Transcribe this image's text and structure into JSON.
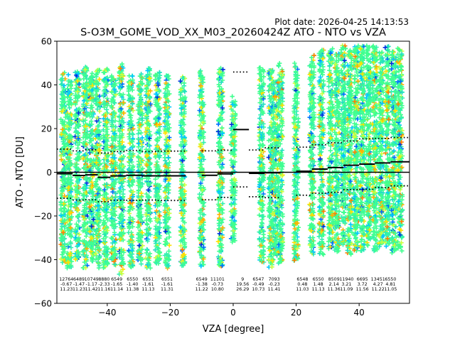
{
  "header": {
    "plot_date": "Plot date: 2026-04-25 14:13:53",
    "title": "S-O3M_GOME_VOD_XX_M03_20260424Z ATO - NTO vs VZA"
  },
  "chart_data": {
    "type": "scatter",
    "title": "S-O3M_GOME_VOD_XX_M03_20260424Z ATO - NTO vs VZA",
    "xlabel": "VZA [degree]",
    "ylabel": "ATO - NTO [DU]",
    "xlim": [
      -56,
      56
    ],
    "ylim": [
      -60,
      60
    ],
    "x_ticks": [
      -40,
      -20,
      0,
      20,
      40
    ],
    "y_ticks": [
      -60,
      -40,
      -20,
      0,
      20,
      40,
      60
    ],
    "zero_line": 0,
    "marker": "+",
    "point_colors": [
      "#40ff90",
      "#30f0b0",
      "#20e0c0",
      "#00c8ff",
      "#0070ff",
      "#0030e0",
      "#c8ff40",
      "#ffe000",
      "#ffb000",
      "#ff7f00"
    ],
    "bins": [
      {
        "vza": -53,
        "count": "12764",
        "mean": "-0.67",
        "std": "11.23"
      },
      {
        "vza": -49,
        "count": "6489",
        "mean": "-1.47",
        "std": "11.23"
      },
      {
        "vza": -45,
        "count": "10749",
        "mean": "-1.17",
        "std": "11.42"
      },
      {
        "vza": -41,
        "count": "8880",
        "mean": "-2.33",
        "std": "11.16"
      },
      {
        "vza": -37,
        "count": "6549",
        "mean": "-1.65",
        "std": "11.14"
      },
      {
        "vza": -32,
        "count": "6550",
        "mean": "-1.40",
        "std": "11.38"
      },
      {
        "vza": -27,
        "count": "6551",
        "mean": "-1.61",
        "std": "11.13"
      },
      {
        "vza": -21,
        "count": "6551",
        "mean": "-1.61",
        "std": "11.31"
      },
      {
        "vza": -10,
        "count": "6549",
        "mean": "-1.38",
        "std": "11.22"
      },
      {
        "vza": -5,
        "count": "11101",
        "mean": "-0.73",
        "std": "10.80"
      },
      {
        "vza": 3,
        "count": "9",
        "mean": "19.56",
        "std": "26.29"
      },
      {
        "vza": 8,
        "count": "6547",
        "mean": "-0.49",
        "std": "10.73"
      },
      {
        "vza": 13,
        "count": "7093",
        "mean": "-0.23",
        "std": "11.41"
      },
      {
        "vza": 22,
        "count": "6548",
        "mean": "0.48",
        "std": "11.03"
      },
      {
        "vza": 27,
        "count": "6550",
        "mean": "1.48",
        "std": "11.13"
      },
      {
        "vza": 32,
        "count": "8509",
        "mean": "2.14",
        "std": "11.36"
      },
      {
        "vza": 36,
        "count": "11940",
        "mean": "3.21",
        "std": "11.09"
      },
      {
        "vza": 41,
        "count": "6695",
        "mean": "3.72",
        "std": "11.56"
      },
      {
        "vza": 46,
        "count": "13451",
        "mean": "4.27",
        "std": "11.22"
      },
      {
        "vza": 50,
        "count": "6550",
        "mean": "4.81",
        "std": "11.05"
      }
    ],
    "mean_segments": [
      {
        "x0": -56,
        "x1": -51,
        "y": -0.67
      },
      {
        "x0": -51,
        "x1": -47,
        "y": -1.47
      },
      {
        "x0": -47,
        "x1": -43,
        "y": -1.17
      },
      {
        "x0": -43,
        "x1": -39,
        "y": -2.33
      },
      {
        "x0": -39,
        "x1": -34,
        "y": -1.65
      },
      {
        "x0": -34,
        "x1": -29,
        "y": -1.4
      },
      {
        "x0": -29,
        "x1": -24,
        "y": -1.61
      },
      {
        "x0": -24,
        "x1": -15,
        "y": -1.61
      },
      {
        "x0": -10,
        "x1": -5,
        "y": -1.38
      },
      {
        "x0": -5,
        "x1": 0,
        "y": -0.73
      },
      {
        "x0": 0,
        "x1": 5,
        "y": 19.56
      },
      {
        "x0": 5,
        "x1": 10,
        "y": -0.49
      },
      {
        "x0": 10,
        "x1": 15,
        "y": -0.23
      },
      {
        "x0": 20,
        "x1": 25,
        "y": 0.48
      },
      {
        "x0": 25,
        "x1": 30,
        "y": 1.48
      },
      {
        "x0": 30,
        "x1": 35,
        "y": 2.14
      },
      {
        "x0": 35,
        "x1": 40,
        "y": 3.21
      },
      {
        "x0": 40,
        "x1": 45,
        "y": 3.72
      },
      {
        "x0": 45,
        "x1": 50,
        "y": 4.27
      },
      {
        "x0": 50,
        "x1": 56,
        "y": 4.81
      }
    ],
    "upper_std_line": [
      {
        "x0": -56,
        "x1": -51,
        "y": 10.6
      },
      {
        "x0": -51,
        "x1": -47,
        "y": 9.8
      },
      {
        "x0": -47,
        "x1": -43,
        "y": 10.3
      },
      {
        "x0": -43,
        "x1": -39,
        "y": 8.8
      },
      {
        "x0": -39,
        "x1": -34,
        "y": 9.5
      },
      {
        "x0": -34,
        "x1": -29,
        "y": 10.0
      },
      {
        "x0": -29,
        "x1": -24,
        "y": 9.5
      },
      {
        "x0": -24,
        "x1": -15,
        "y": 9.7
      },
      {
        "x0": -10,
        "x1": -5,
        "y": 9.8
      },
      {
        "x0": -5,
        "x1": 0,
        "y": 10.1
      },
      {
        "x0": 0,
        "x1": 5,
        "y": 45.9
      },
      {
        "x0": 5,
        "x1": 10,
        "y": 10.2
      },
      {
        "x0": 10,
        "x1": 15,
        "y": 11.2
      },
      {
        "x0": 20,
        "x1": 25,
        "y": 11.5
      },
      {
        "x0": 25,
        "x1": 30,
        "y": 12.6
      },
      {
        "x0": 30,
        "x1": 35,
        "y": 13.5
      },
      {
        "x0": 35,
        "x1": 40,
        "y": 14.3
      },
      {
        "x0": 40,
        "x1": 45,
        "y": 15.3
      },
      {
        "x0": 45,
        "x1": 50,
        "y": 15.5
      },
      {
        "x0": 50,
        "x1": 56,
        "y": 15.9
      }
    ],
    "lower_std_line": [
      {
        "x0": -56,
        "x1": -51,
        "y": -11.9
      },
      {
        "x0": -51,
        "x1": -47,
        "y": -12.7
      },
      {
        "x0": -47,
        "x1": -43,
        "y": -12.6
      },
      {
        "x0": -43,
        "x1": -39,
        "y": -13.5
      },
      {
        "x0": -39,
        "x1": -34,
        "y": -12.8
      },
      {
        "x0": -34,
        "x1": -29,
        "y": -12.8
      },
      {
        "x0": -29,
        "x1": -24,
        "y": -12.7
      },
      {
        "x0": -24,
        "x1": -15,
        "y": -12.9
      },
      {
        "x0": -10,
        "x1": -5,
        "y": -12.6
      },
      {
        "x0": -5,
        "x1": 0,
        "y": -11.5
      },
      {
        "x0": 0,
        "x1": 5,
        "y": -6.7
      },
      {
        "x0": 5,
        "x1": 10,
        "y": -11.2
      },
      {
        "x0": 10,
        "x1": 15,
        "y": -11.6
      },
      {
        "x0": 20,
        "x1": 25,
        "y": -10.5
      },
      {
        "x0": 25,
        "x1": 30,
        "y": -9.6
      },
      {
        "x0": 30,
        "x1": 35,
        "y": -9.2
      },
      {
        "x0": 35,
        "x1": 40,
        "y": -7.9
      },
      {
        "x0": 40,
        "x1": 45,
        "y": -7.8
      },
      {
        "x0": 45,
        "x1": 50,
        "y": -7.0
      },
      {
        "x0": 50,
        "x1": 56,
        "y": -6.2
      }
    ],
    "scatter_columns": [
      {
        "vza": -54,
        "ymin": -42,
        "ymax": 46
      },
      {
        "vza": -52,
        "ymin": -44,
        "ymax": 45
      },
      {
        "vza": -49.5,
        "ymin": -40,
        "ymax": 47
      },
      {
        "vza": -47,
        "ymin": -44,
        "ymax": 49
      },
      {
        "vza": -45,
        "ymin": -41,
        "ymax": 46
      },
      {
        "vza": -43,
        "ymin": -44,
        "ymax": 47
      },
      {
        "vza": -40.5,
        "ymin": -44,
        "ymax": 48
      },
      {
        "vza": -38,
        "ymin": -43,
        "ymax": 46
      },
      {
        "vza": -35.5,
        "ymin": -47,
        "ymax": 50
      },
      {
        "vza": -32.5,
        "ymin": -44,
        "ymax": 45
      },
      {
        "vza": -29.5,
        "ymin": -42,
        "ymax": 46
      },
      {
        "vza": -27,
        "ymin": -44,
        "ymax": 48
      },
      {
        "vza": -24,
        "ymin": -42,
        "ymax": 46
      },
      {
        "vza": -21,
        "ymin": -44,
        "ymax": 45
      },
      {
        "vza": -16,
        "ymin": -43,
        "ymax": 45
      },
      {
        "vza": -10,
        "ymin": -43,
        "ymax": 47
      },
      {
        "vza": -4,
        "ymin": -43,
        "ymax": 48
      },
      {
        "vza": 0,
        "ymin": -32,
        "ymax": 35
      },
      {
        "vza": 9,
        "ymin": -42,
        "ymax": 48
      },
      {
        "vza": 12,
        "ymin": -44,
        "ymax": 47
      },
      {
        "vza": 13.5,
        "ymin": -38,
        "ymax": 42
      },
      {
        "vza": 15,
        "ymin": -42,
        "ymax": 50
      },
      {
        "vza": 20,
        "ymin": -42,
        "ymax": 50
      },
      {
        "vza": 25,
        "ymin": -38,
        "ymax": 54
      },
      {
        "vza": 28,
        "ymin": -38,
        "ymax": 56
      },
      {
        "vza": 31,
        "ymin": -35,
        "ymax": 57
      },
      {
        "vza": 33,
        "ymin": -37,
        "ymax": 55
      },
      {
        "vza": 35,
        "ymin": -34,
        "ymax": 58
      },
      {
        "vza": 37,
        "ymin": -38,
        "ymax": 56
      },
      {
        "vza": 39,
        "ymin": -36,
        "ymax": 58
      },
      {
        "vza": 41,
        "ymin": -36,
        "ymax": 58
      },
      {
        "vza": 43,
        "ymin": -34,
        "ymax": 58
      },
      {
        "vza": 45,
        "ymin": -36,
        "ymax": 58
      },
      {
        "vza": 47,
        "ymin": -34,
        "ymax": 57
      },
      {
        "vza": 49,
        "ymin": -34,
        "ymax": 58
      },
      {
        "vza": 51,
        "ymin": -37,
        "ymax": 56
      },
      {
        "vza": 53,
        "ymin": -36,
        "ymax": 57
      }
    ]
  }
}
